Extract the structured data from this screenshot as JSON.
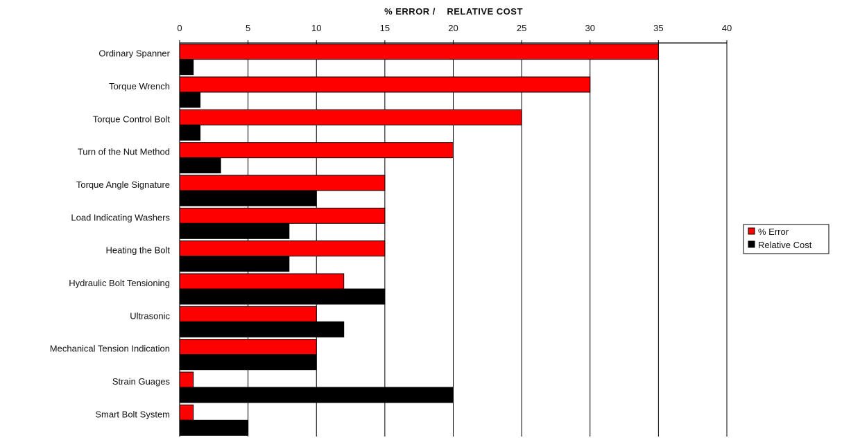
{
  "chart_data": {
    "type": "bar",
    "orientation": "horizontal",
    "xlabel": "% ERROR /    RELATIVE COST",
    "xlim": [
      0,
      40
    ],
    "xticks": [
      0,
      5,
      10,
      15,
      20,
      25,
      30,
      35,
      40
    ],
    "x_axis_position": "top",
    "grid": true,
    "legend_position": "right",
    "categories": [
      "Ordinary Spanner",
      "Torque Wrench",
      "Torque Control Bolt",
      "Turn of the Nut Method",
      "Torque Angle Signature",
      "Load Indicating Washers",
      "Heating the Bolt",
      "Hydraulic Bolt Tensioning",
      "Ultrasonic",
      "Mechanical Tension Indication",
      "Strain Guages",
      "Smart Bolt System"
    ],
    "series": [
      {
        "name": "% Error",
        "color": "#ff0000",
        "values": [
          35,
          30,
          25,
          20,
          15,
          15,
          15,
          12,
          10,
          10,
          1,
          1
        ]
      },
      {
        "name": "Relative Cost",
        "color": "#000000",
        "values": [
          1,
          1.5,
          1.5,
          3,
          10,
          8,
          8,
          15,
          12,
          10,
          20,
          5
        ]
      }
    ]
  }
}
